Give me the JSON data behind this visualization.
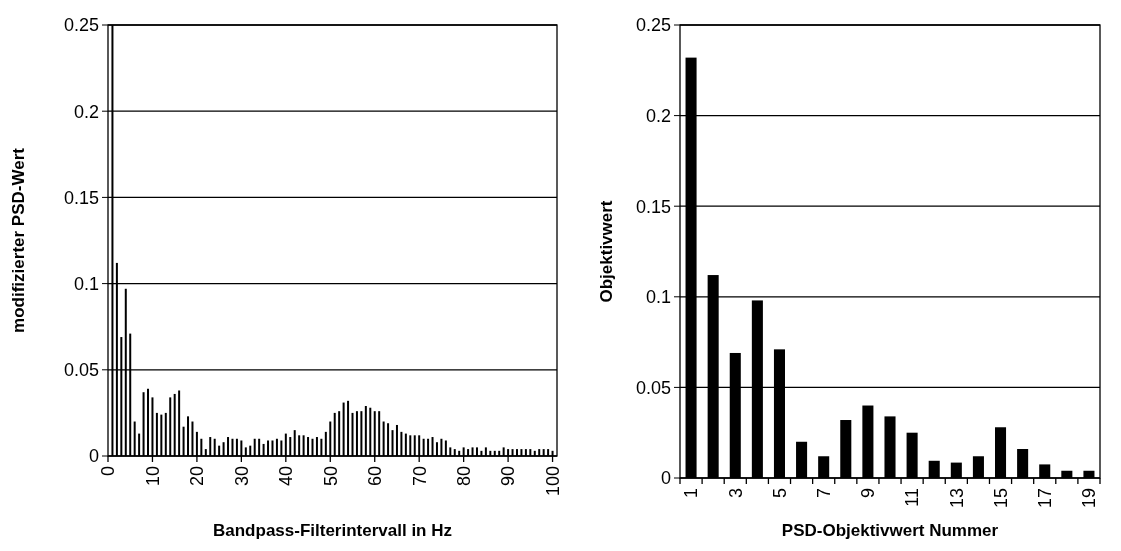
{
  "chart_data": [
    {
      "type": "bar",
      "xlabel": "Bandpass-Filterintervall in Hz",
      "ylabel": "modifizierter PSD-Wert",
      "color": "#000000",
      "grid": "y",
      "x": [
        1,
        2,
        3,
        4,
        5,
        6,
        7,
        8,
        9,
        10,
        11,
        12,
        13,
        14,
        15,
        16,
        17,
        18,
        19,
        20,
        21,
        22,
        23,
        24,
        25,
        26,
        27,
        28,
        29,
        30,
        31,
        32,
        33,
        34,
        35,
        36,
        37,
        38,
        39,
        40,
        41,
        42,
        43,
        44,
        45,
        46,
        47,
        48,
        49,
        50,
        51,
        52,
        53,
        54,
        55,
        56,
        57,
        58,
        59,
        60,
        61,
        62,
        63,
        64,
        65,
        66,
        67,
        68,
        69,
        70,
        71,
        72,
        73,
        74,
        75,
        76,
        77,
        78,
        79,
        80,
        81,
        82,
        83,
        84,
        85,
        86,
        87,
        88,
        89,
        90,
        91,
        92,
        93,
        94,
        95,
        96,
        97,
        98,
        99,
        100
      ],
      "values": [
        0.25,
        0.112,
        0.069,
        0.097,
        0.071,
        0.02,
        0.013,
        0.037,
        0.039,
        0.034,
        0.025,
        0.024,
        0.025,
        0.034,
        0.036,
        0.038,
        0.017,
        0.023,
        0.02,
        0.014,
        0.01,
        0.004,
        0.011,
        0.01,
        0.006,
        0.008,
        0.011,
        0.01,
        0.01,
        0.009,
        0.005,
        0.006,
        0.01,
        0.01,
        0.007,
        0.009,
        0.009,
        0.01,
        0.009,
        0.013,
        0.011,
        0.015,
        0.012,
        0.012,
        0.011,
        0.01,
        0.011,
        0.01,
        0.014,
        0.02,
        0.025,
        0.026,
        0.031,
        0.032,
        0.025,
        0.026,
        0.026,
        0.029,
        0.028,
        0.026,
        0.026,
        0.02,
        0.019,
        0.015,
        0.018,
        0.014,
        0.013,
        0.012,
        0.012,
        0.012,
        0.01,
        0.01,
        0.011,
        0.008,
        0.01,
        0.009,
        0.005,
        0.004,
        0.003,
        0.005,
        0.004,
        0.005,
        0.005,
        0.003,
        0.005,
        0.003,
        0.003,
        0.003,
        0.005,
        0.004,
        0.004,
        0.004,
        0.004,
        0.004,
        0.004,
        0.003,
        0.004,
        0.004,
        0.004,
        0.003
      ],
      "xlim": [
        0,
        101
      ],
      "xticks": [
        0,
        10,
        20,
        30,
        40,
        50,
        60,
        70,
        80,
        90,
        100
      ],
      "ylim": [
        0,
        0.25
      ],
      "yticks": [
        0,
        0.05,
        0.1,
        0.15,
        0.2,
        0.25
      ]
    },
    {
      "type": "bar",
      "xlabel": "PSD-Objektivwert Nummer",
      "ylabel": "Objektivwert",
      "color": "#000000",
      "grid": "y",
      "categories": [
        "1",
        null,
        "3",
        null,
        "5",
        null,
        "7",
        null,
        "9",
        null,
        "11",
        null,
        "13",
        null,
        "15",
        null,
        "17",
        null,
        "19"
      ],
      "values": [
        0.232,
        0.112,
        0.069,
        0.098,
        0.071,
        0.02,
        0.012,
        0.032,
        0.04,
        0.034,
        0.025,
        0.0095,
        0.0085,
        0.012,
        0.028,
        0.016,
        0.0075,
        0.004,
        0.004
      ],
      "ylim": [
        0,
        0.25
      ],
      "yticks": [
        0,
        0.05,
        0.1,
        0.15,
        0.2,
        0.25
      ]
    }
  ]
}
